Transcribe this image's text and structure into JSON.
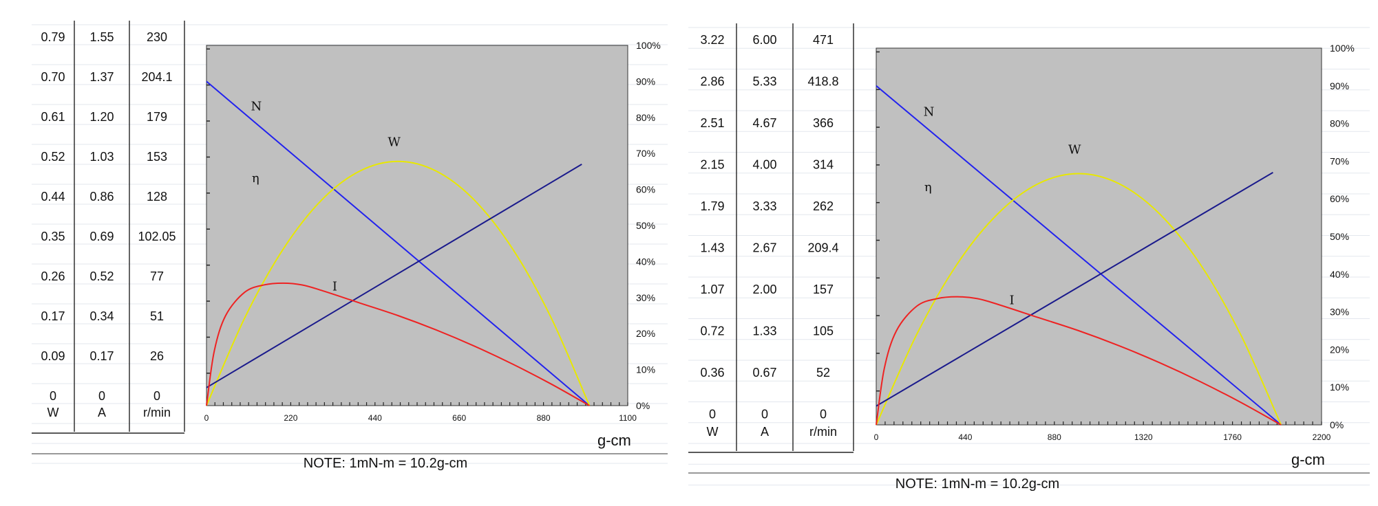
{
  "chart_data": [
    {
      "type": "line",
      "title": "",
      "xlabel": "g-cm",
      "note": "NOTE: 1mN-m = 10.2g-cm",
      "xlim": [
        0,
        1100
      ],
      "x_ticks": [
        "0",
        "220",
        "440",
        "660",
        "880",
        "1100"
      ],
      "y_ticks": [
        "0%",
        "10%",
        "20%",
        "30%",
        "40%",
        "50%",
        "60%",
        "70%",
        "80%",
        "90%",
        "100%"
      ],
      "left_table": {
        "headers": [
          "W",
          "A",
          "r/min"
        ],
        "rows": [
          [
            "0.79",
            "1.55",
            "230"
          ],
          [
            "0.70",
            "1.37",
            "204.1"
          ],
          [
            "0.61",
            "1.20",
            "179"
          ],
          [
            "0.52",
            "1.03",
            "153"
          ],
          [
            "0.44",
            "0.86",
            "128"
          ],
          [
            "0.35",
            "0.69",
            "102.05"
          ],
          [
            "0.26",
            "0.52",
            "77"
          ],
          [
            "0.17",
            "0.34",
            "51"
          ],
          [
            "0.09",
            "0.17",
            "26"
          ],
          [
            "0",
            "0",
            "0"
          ]
        ]
      },
      "series": [
        {
          "name": "N",
          "color": "#2222ee",
          "x": [
            0,
            1000
          ],
          "y": [
            90,
            0
          ]
        },
        {
          "name": "W",
          "color": "#e8e800",
          "x": [
            0,
            100,
            200,
            300,
            400,
            500,
            600,
            700,
            800,
            900,
            1000
          ],
          "y": [
            0,
            24.4,
            43.4,
            57,
            65.1,
            67.8,
            65.1,
            57,
            43.4,
            24.4,
            0
          ]
        },
        {
          "name": "η",
          "color": "#1a1a8c",
          "x": [
            0,
            980
          ],
          "y": [
            5,
            67
          ]
        },
        {
          "name": "I",
          "color": "#ee2222",
          "x": [
            0,
            20,
            50,
            100,
            150,
            200,
            250,
            300,
            400,
            500,
            600,
            700,
            800,
            900,
            1000
          ],
          "y": [
            0,
            15,
            25,
            31.5,
            33.5,
            34,
            33.5,
            32,
            28.5,
            25,
            21,
            16.5,
            11.5,
            6,
            0
          ]
        }
      ],
      "curve_labels": [
        {
          "text": "N",
          "x": 130,
          "y": 82
        },
        {
          "text": "W",
          "x": 490,
          "y": 72
        },
        {
          "text": "η",
          "x": 128,
          "y": 62
        },
        {
          "text": "I",
          "x": 335,
          "y": 32
        }
      ]
    },
    {
      "type": "line",
      "title": "",
      "xlabel": "g-cm",
      "note": "NOTE: 1mN-m = 10.2g-cm",
      "xlim": [
        0,
        2200
      ],
      "x_ticks": [
        "0",
        "440",
        "880",
        "1320",
        "1760",
        "2200"
      ],
      "y_ticks": [
        "0%",
        "10%",
        "20%",
        "30%",
        "40%",
        "50%",
        "60%",
        "70%",
        "80%",
        "90%",
        "100%"
      ],
      "left_table": {
        "headers": [
          "W",
          "A",
          "r/min"
        ],
        "rows": [
          [
            "3.22",
            "6.00",
            "471"
          ],
          [
            "2.86",
            "5.33",
            "418.8"
          ],
          [
            "2.51",
            "4.67",
            "366"
          ],
          [
            "2.15",
            "4.00",
            "314"
          ],
          [
            "1.79",
            "3.33",
            "262"
          ],
          [
            "1.43",
            "2.67",
            "209.4"
          ],
          [
            "1.07",
            "2.00",
            "157"
          ],
          [
            "0.72",
            "1.33",
            "105"
          ],
          [
            "0.36",
            "0.67",
            "52"
          ],
          [
            "0",
            "0",
            "0"
          ]
        ]
      },
      "series": [
        {
          "name": "N",
          "color": "#2222ee",
          "x": [
            0,
            2000
          ],
          "y": [
            90,
            0
          ]
        },
        {
          "name": "W",
          "color": "#e8e800",
          "x": [
            0,
            200,
            400,
            600,
            800,
            1000,
            1200,
            1400,
            1600,
            1800,
            2000
          ],
          "y": [
            0,
            24,
            42.7,
            56,
            64,
            66.7,
            64,
            56,
            42.7,
            24,
            0
          ]
        },
        {
          "name": "η",
          "color": "#1a1a8c",
          "x": [
            0,
            1960
          ],
          "y": [
            5,
            67
          ]
        },
        {
          "name": "I",
          "color": "#ee2222",
          "x": [
            0,
            40,
            100,
            200,
            300,
            400,
            500,
            600,
            800,
            1000,
            1200,
            1400,
            1600,
            1800,
            2000
          ],
          "y": [
            0,
            15,
            25,
            31.5,
            33.5,
            34,
            33.5,
            32,
            28.5,
            25,
            21,
            16.5,
            11.5,
            6,
            0
          ]
        }
      ],
      "curve_labels": [
        {
          "text": "N",
          "x": 260,
          "y": 82
        },
        {
          "text": "W",
          "x": 980,
          "y": 72
        },
        {
          "text": "η",
          "x": 256,
          "y": 62
        },
        {
          "text": "I",
          "x": 670,
          "y": 32
        }
      ]
    }
  ]
}
